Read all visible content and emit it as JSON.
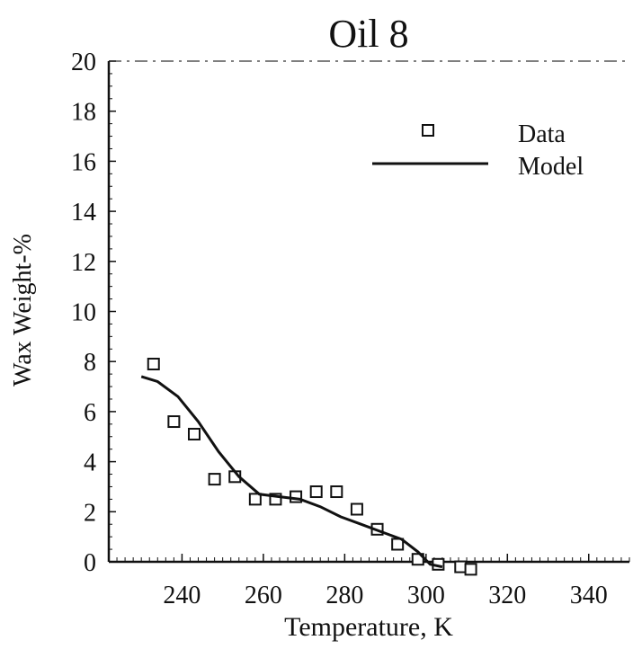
{
  "chart_data": {
    "type": "scatter",
    "title": "Oil 8",
    "xlabel": "Temperature, K",
    "ylabel": "Wax Weight-%",
    "xlim": [
      222,
      350
    ],
    "ylim": [
      0,
      20
    ],
    "x_ticks": [
      240,
      260,
      280,
      300,
      320,
      340
    ],
    "y_ticks": [
      0,
      2,
      4,
      6,
      8,
      10,
      12,
      14,
      16,
      18,
      20
    ],
    "legend_position": "top-right",
    "grid": false,
    "series": [
      {
        "name": "Data",
        "kind": "scatter",
        "marker": "hollow-square",
        "x": [
          233,
          238,
          243,
          248,
          253,
          258,
          263,
          268,
          273,
          278,
          283,
          288,
          293,
          298,
          303,
          308.5,
          311
        ],
        "y": [
          7.9,
          5.6,
          5.1,
          3.3,
          3.4,
          2.5,
          2.5,
          2.6,
          2.8,
          2.8,
          2.1,
          1.3,
          0.7,
          0.1,
          -0.1,
          -0.2,
          -0.3
        ]
      },
      {
        "name": "Model",
        "kind": "line",
        "x": [
          230,
          234,
          239,
          244,
          249,
          254,
          259,
          264,
          269,
          274,
          279,
          284,
          289,
          294,
          298,
          301,
          304
        ],
        "y": [
          7.4,
          7.2,
          6.6,
          5.6,
          4.4,
          3.4,
          2.7,
          2.6,
          2.5,
          2.2,
          1.8,
          1.5,
          1.2,
          0.9,
          0.4,
          -0.1,
          -0.2
        ]
      }
    ]
  }
}
